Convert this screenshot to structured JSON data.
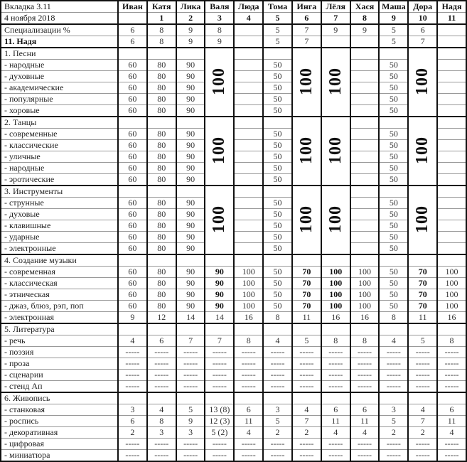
{
  "title": "Вкладка 3.11",
  "date": "4 ноября 2018",
  "columns": [
    {
      "name": "Иван",
      "num": ""
    },
    {
      "name": "Катя",
      "num": "1"
    },
    {
      "name": "Лика",
      "num": "2"
    },
    {
      "name": "Валя",
      "num": "3"
    },
    {
      "name": "Люда",
      "num": "4"
    },
    {
      "name": "Тома",
      "num": "5"
    },
    {
      "name": "Инга",
      "num": "6"
    },
    {
      "name": "Лёля",
      "num": "7"
    },
    {
      "name": "Хася",
      "num": "8"
    },
    {
      "name": "Маша",
      "num": "9"
    },
    {
      "name": "Дора",
      "num": "10"
    },
    {
      "name": "Надя",
      "num": "11"
    }
  ],
  "summary_rows": [
    {
      "label": "Специализации %",
      "bold": false,
      "values": [
        "6",
        "8",
        "9",
        "8",
        "",
        "5",
        "7",
        "9",
        "9",
        "5",
        "6",
        ""
      ]
    },
    {
      "label": "11. Надя",
      "bold": true,
      "values": [
        "6",
        "8",
        "9",
        "9",
        "",
        "5",
        "7",
        "",
        "",
        "5",
        "7",
        ""
      ]
    }
  ],
  "groups": [
    {
      "title": "1. Песни",
      "merged_value": "100",
      "merged_columns": [
        4,
        7,
        8,
        11
      ],
      "rows": [
        {
          "label": "- народные",
          "values": [
            "60",
            "80",
            "90",
            "90",
            "",
            "50",
            "70",
            "",
            "",
            "50",
            "70",
            ""
          ]
        },
        {
          "label": "- духовные",
          "values": [
            "60",
            "80",
            "90",
            "90",
            "",
            "50",
            "70",
            "",
            "",
            "50",
            "70",
            ""
          ]
        },
        {
          "label": "- академические",
          "values": [
            "60",
            "80",
            "90",
            "90",
            "",
            "50",
            "70",
            "",
            "",
            "50",
            "70",
            ""
          ]
        },
        {
          "label": "- популярные",
          "values": [
            "60",
            "80",
            "90",
            "90",
            "",
            "50",
            "70",
            "",
            "",
            "50",
            "70",
            ""
          ]
        },
        {
          "label": "- хоровые",
          "values": [
            "60",
            "80",
            "90",
            "90",
            "",
            "50",
            "70",
            "",
            "",
            "50",
            "70",
            ""
          ]
        }
      ]
    },
    {
      "title": "2. Танцы",
      "merged_value": "100",
      "merged_columns": [
        4,
        7,
        8,
        11
      ],
      "rows": [
        {
          "label": "- современные",
          "values": [
            "60",
            "80",
            "90",
            "90",
            "",
            "50",
            "70",
            "",
            "",
            "50",
            "70",
            ""
          ]
        },
        {
          "label": "- классические",
          "values": [
            "60",
            "80",
            "90",
            "90",
            "",
            "50",
            "70",
            "",
            "",
            "50",
            "70",
            ""
          ]
        },
        {
          "label": "- уличные",
          "values": [
            "60",
            "80",
            "90",
            "90",
            "",
            "50",
            "70",
            "",
            "",
            "50",
            "70",
            ""
          ]
        },
        {
          "label": "- народные",
          "values": [
            "60",
            "80",
            "90",
            "90",
            "",
            "50",
            "70",
            "",
            "",
            "50",
            "70",
            ""
          ]
        },
        {
          "label": "- эротические",
          "values": [
            "60",
            "80",
            "90",
            "90",
            "",
            "50",
            "70",
            "",
            "",
            "50",
            "70",
            ""
          ]
        }
      ]
    },
    {
      "title": "3. Инструменты",
      "merged_value": "100",
      "merged_columns": [
        4,
        7,
        8,
        11
      ],
      "rows": [
        {
          "label": "- струнные",
          "values": [
            "60",
            "80",
            "90",
            "90",
            "",
            "50",
            "70",
            "",
            "",
            "50",
            "70",
            ""
          ]
        },
        {
          "label": "- духовые",
          "values": [
            "60",
            "80",
            "90",
            "90",
            "",
            "50",
            "70",
            "",
            "",
            "50",
            "70",
            ""
          ]
        },
        {
          "label": "- клавишные",
          "values": [
            "60",
            "80",
            "90",
            "90",
            "",
            "50",
            "70",
            "",
            "",
            "50",
            "70",
            ""
          ]
        },
        {
          "label": "- ударные",
          "values": [
            "60",
            "80",
            "90",
            "90",
            "",
            "50",
            "70",
            "",
            "",
            "50",
            "70",
            ""
          ]
        },
        {
          "label": "- электронные",
          "values": [
            "60",
            "80",
            "90",
            "90",
            "",
            "50",
            "70",
            "",
            "",
            "50",
            "70",
            ""
          ]
        }
      ]
    },
    {
      "title": "4. Создание музыки",
      "bold_columns": [
        4,
        7,
        8,
        11
      ],
      "rows": [
        {
          "label": "- современная",
          "values": [
            "60",
            "80",
            "90",
            "90",
            "100",
            "50",
            "70",
            "100",
            "100",
            "50",
            "70",
            "100"
          ]
        },
        {
          "label": "- классическая",
          "values": [
            "60",
            "80",
            "90",
            "90",
            "100",
            "50",
            "70",
            "100",
            "100",
            "50",
            "70",
            "100"
          ]
        },
        {
          "label": "- этническая",
          "values": [
            "60",
            "80",
            "90",
            "90",
            "100",
            "50",
            "70",
            "100",
            "100",
            "50",
            "70",
            "100"
          ]
        },
        {
          "label": "- джаз, блюз, рэп, поп",
          "values": [
            "60",
            "80",
            "90",
            "90",
            "100",
            "50",
            "70",
            "100",
            "100",
            "50",
            "70",
            "100"
          ]
        },
        {
          "label": "- электронная",
          "plain": true,
          "values": [
            "9",
            "12",
            "14",
            "14",
            "16",
            "8",
            "11",
            "16",
            "16",
            "8",
            "11",
            "16"
          ]
        }
      ]
    },
    {
      "title": "5. Литература",
      "rows": [
        {
          "label": "- речь",
          "values": [
            "4",
            "6",
            "7",
            "7",
            "8",
            "4",
            "5",
            "8",
            "8",
            "4",
            "5",
            "8"
          ]
        },
        {
          "label": "- поэзия",
          "values": [
            "-----",
            "-----",
            "-----",
            "-----",
            "-----",
            "-----",
            "-----",
            "-----",
            "-----",
            "-----",
            "-----",
            "-----"
          ]
        },
        {
          "label": "- проза",
          "values": [
            "-----",
            "-----",
            "-----",
            "-----",
            "-----",
            "-----",
            "-----",
            "-----",
            "-----",
            "-----",
            "-----",
            "-----"
          ]
        },
        {
          "label": "- сценарии",
          "values": [
            "-----",
            "-----",
            "-----",
            "-----",
            "-----",
            "-----",
            "-----",
            "-----",
            "-----",
            "-----",
            "-----",
            "-----"
          ]
        },
        {
          "label": "- стенд Ап",
          "values": [
            "-----",
            "-----",
            "-----",
            "-----",
            "-----",
            "-----",
            "-----",
            "-----",
            "-----",
            "-----",
            "-----",
            "-----"
          ]
        }
      ]
    },
    {
      "title": "6. Живопись",
      "rows": [
        {
          "label": "- станковая",
          "values": [
            "3",
            "4",
            "5",
            "13 (8)",
            "6",
            "3",
            "4",
            "6",
            "6",
            "3",
            "4",
            "6"
          ]
        },
        {
          "label": "- роспись",
          "values": [
            "6",
            "8",
            "9",
            "12 (3)",
            "11",
            "5",
            "7",
            "11",
            "11",
            "5",
            "7",
            "11"
          ]
        },
        {
          "label": "- декоративная",
          "values": [
            "2",
            "3",
            "3",
            "5 (2)",
            "4",
            "2",
            "2",
            "4",
            "4",
            "2",
            "2",
            "4"
          ]
        },
        {
          "label": "- цифровая",
          "values": [
            "-----",
            "-----",
            "-----",
            "-----",
            "-----",
            "-----",
            "-----",
            "-----",
            "-----",
            "-----",
            "-----",
            "-----"
          ]
        },
        {
          "label": "- миниатюра",
          "values": [
            "-----",
            "-----",
            "-----",
            "-----",
            "-----",
            "-----",
            "-----",
            "-----",
            "-----",
            "-----",
            "-----",
            "-----"
          ]
        }
      ]
    }
  ]
}
